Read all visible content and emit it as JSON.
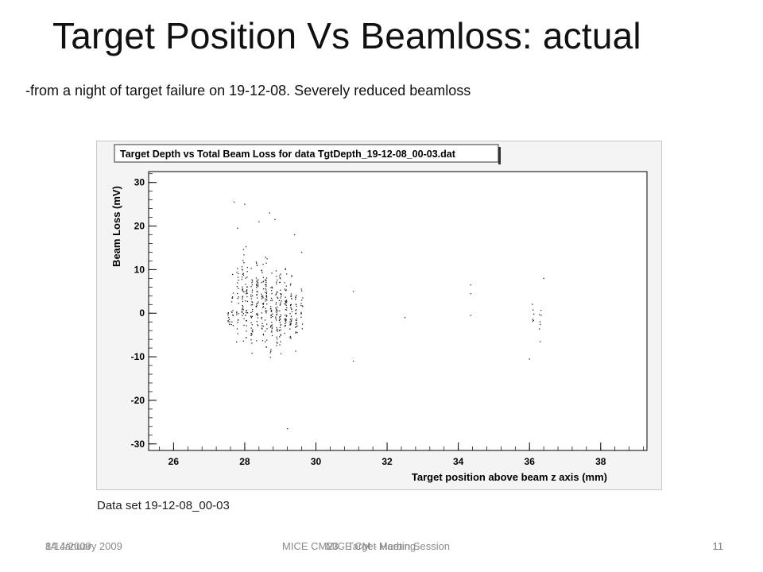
{
  "slide": {
    "title": "Target Position Vs Beamloss: actual",
    "subtitle": "-from a night of target failure on 19-12-08.  Severely reduced beamloss",
    "caption": "Data set 19-12-08_00-03",
    "footer": {
      "date_a": "8/14/2009",
      "date_b": "14 January 2009",
      "event_a": "MICE CM23 - Target Meeting",
      "event_b": "MICE CM - Harbin Session",
      "page_a": "11",
      "page_b": "11"
    }
  },
  "chart_data": {
    "type": "scatter",
    "title": "Target Depth vs Total Beam Loss for data TgtDepth_19-12-08_00-03.dat",
    "xlabel": "Target position above beam z axis (mm)",
    "ylabel": "Beam Loss (mV)",
    "xlim": [
      25.3,
      39.3
    ],
    "ylim": [
      -31.5,
      32.5
    ],
    "xticks": [
      26,
      28,
      30,
      32,
      34,
      36,
      38
    ],
    "yticks": [
      -30,
      -20,
      -10,
      0,
      10,
      20,
      30
    ],
    "grid": false,
    "marker_color": "#222222",
    "columns": [
      {
        "x": 27.55,
        "ymin": -7,
        "ymax": 6,
        "n": 10
      },
      {
        "x": 27.65,
        "ymin": -8,
        "ymax": 12,
        "n": 14
      },
      {
        "x": 27.8,
        "ymin": -9,
        "ymax": 16,
        "n": 22
      },
      {
        "x": 27.95,
        "ymin": -11,
        "ymax": 22,
        "n": 34
      },
      {
        "x": 28.05,
        "ymin": -9,
        "ymax": 18,
        "n": 30
      },
      {
        "x": 28.2,
        "ymin": -12,
        "ymax": 14,
        "n": 36
      },
      {
        "x": 28.35,
        "ymin": -12,
        "ymax": 20,
        "n": 36
      },
      {
        "x": 28.5,
        "ymin": -10,
        "ymax": 15,
        "n": 32
      },
      {
        "x": 28.6,
        "ymin": -13,
        "ymax": 18,
        "n": 38
      },
      {
        "x": 28.75,
        "ymin": -12,
        "ymax": 12,
        "n": 34
      },
      {
        "x": 28.9,
        "ymin": -11,
        "ymax": 15,
        "n": 34
      },
      {
        "x": 29.0,
        "ymin": -13,
        "ymax": 14,
        "n": 38
      },
      {
        "x": 29.15,
        "ymin": -12,
        "ymax": 15,
        "n": 36
      },
      {
        "x": 29.3,
        "ymin": -11,
        "ymax": 13,
        "n": 32
      },
      {
        "x": 29.45,
        "ymin": -10,
        "ymax": 11,
        "n": 24
      },
      {
        "x": 29.6,
        "ymin": -8,
        "ymax": 9,
        "n": 14
      },
      {
        "x": 36.1,
        "ymin": -5,
        "ymax": 4,
        "n": 6
      },
      {
        "x": 36.3,
        "ymin": -6,
        "ymax": 3,
        "n": 6
      }
    ],
    "points": [
      {
        "x": 27.7,
        "y": 25.5
      },
      {
        "x": 27.8,
        "y": 19.5
      },
      {
        "x": 28.0,
        "y": 25.0
      },
      {
        "x": 28.4,
        "y": 21.0
      },
      {
        "x": 28.7,
        "y": 23.0
      },
      {
        "x": 29.2,
        "y": -26.5
      },
      {
        "x": 29.4,
        "y": 18.0
      },
      {
        "x": 28.85,
        "y": 21.5
      },
      {
        "x": 29.6,
        "y": 14.0
      },
      {
        "x": 31.05,
        "y": 5.0
      },
      {
        "x": 31.05,
        "y": -11.0
      },
      {
        "x": 32.5,
        "y": -1.0
      },
      {
        "x": 34.35,
        "y": 6.5
      },
      {
        "x": 34.35,
        "y": 4.5
      },
      {
        "x": 34.35,
        "y": -0.5
      },
      {
        "x": 36.4,
        "y": 8.0
      },
      {
        "x": 36.0,
        "y": -10.5
      },
      {
        "x": 36.3,
        "y": -6.5
      }
    ]
  }
}
